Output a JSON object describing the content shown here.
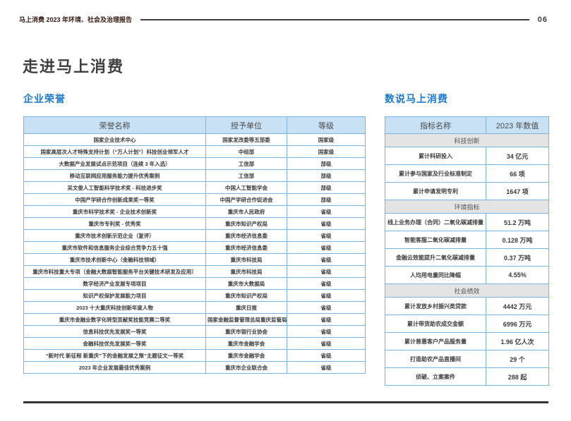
{
  "page": {
    "report_title": "马上消费 2023 年环境、社会及治理报告",
    "page_number": "06",
    "title": "走进马上消费"
  },
  "colors": {
    "accent_blue": "#1e7ac9",
    "table_border": "#79b3e0",
    "table_header_bg": "#c9e1f4",
    "section_row_bg": "#e4e4e4",
    "dark_text": "#3f3f3f",
    "report_title_color": "#31170e"
  },
  "honors": {
    "heading": "企业荣誉",
    "columns": [
      "荣誉名称",
      "授予单位",
      "等级"
    ],
    "rows": [
      [
        "国家企业技术中心",
        "国家发改委等五部委",
        "国家级"
      ],
      [
        "国家高层次人才特殊支持计划（“万人计划”）科技创业领军人才",
        "中组部",
        "国家级"
      ],
      [
        "大数据产业发展试点示范项目（连续 3 年入选）",
        "工信部",
        "部级"
      ],
      [
        "移动互联网应用服务能力提升优秀案例",
        "工信部",
        "部级"
      ],
      [
        "吴文俊人工智能科学技术奖 - 科技进步奖",
        "中国人工智能学会",
        "部级"
      ],
      [
        "中国产学研合作创新成果奖一等奖",
        "中国产学研合作促进会",
        "部级"
      ],
      [
        "重庆市科学技术奖 - 企业技术创新奖",
        "重庆市人民政府",
        "省级"
      ],
      [
        "重庆市专利奖 - 优秀奖",
        "重庆市知识产权局",
        "省级"
      ],
      [
        "重庆市技术创新示范企业（复评）",
        "重庆市经济信息委",
        "省级"
      ],
      [
        "重庆市软件和信息服务企业综合竞争力五十强",
        "重庆市经济信息委",
        "省级"
      ],
      [
        "重庆市技术创新中心（金融科技领域）",
        "重庆市科技局",
        "省级"
      ],
      [
        "重庆市科技重大专项（金融大数据智能服务平台关键技术研发及应用）",
        "重庆市科技局",
        "省级"
      ],
      [
        "数字经济产业发展专项项目",
        "重庆市大数据局",
        "省级"
      ],
      [
        "知识产权保护发展能力项目",
        "重庆市知识产权局",
        "省级"
      ],
      [
        "2023 十大重庆科技创新年度人物",
        "重庆日报",
        "省级"
      ],
      [
        "重庆市金融业数字化转型贡献奖技能竞赛二等奖",
        "国家金融监督管理总局重庆监管局",
        "省级"
      ],
      [
        "信息科技优先发展奖一等奖",
        "重庆市银行业协会",
        "省级"
      ],
      [
        "金融科技优先发展奖一等奖",
        "重庆市金融学会",
        "省级"
      ],
      [
        "“新时代 新征程 新重庆”下的金融发展之策”主题征文一等奖",
        "重庆市金融学会",
        "省级"
      ],
      [
        "2023 年企业发展最佳优秀案例",
        "重庆市企业联合会",
        "省级"
      ]
    ]
  },
  "metrics": {
    "heading": "数说马上消费",
    "columns": [
      "指标名称",
      "2023 年数值"
    ],
    "sections": [
      {
        "name": "科技创新",
        "rows": [
          [
            "累计科研投入",
            "34 亿元"
          ],
          [
            "累计参与国家及行业标准制定",
            "66 项"
          ],
          [
            "累计申请发明专利",
            "1647 项"
          ]
        ]
      },
      {
        "name": "环境指标",
        "rows": [
          [
            "线上业务办理（合同）二氧化碳减排量",
            "51.2 万吨"
          ],
          [
            "智能客服二氧化碳减排量",
            "0.128 万吨"
          ],
          [
            "金融云效能提升二氧化碳减排量",
            "0.37 万吨"
          ],
          [
            "人均用电量同比降幅",
            "4.55%"
          ]
        ]
      },
      {
        "name": "社会绩效",
        "rows": [
          [
            "累计发放乡村振兴类贷款",
            "4442 万元"
          ],
          [
            "累计带货助农成交金额",
            "6996 万元"
          ],
          [
            "累计普惠客户产品服务量",
            "1.96 亿人次"
          ],
          [
            "打造助农产品直播间",
            "29 个"
          ],
          [
            "侦破、立案案件",
            "288 起"
          ]
        ]
      }
    ]
  }
}
